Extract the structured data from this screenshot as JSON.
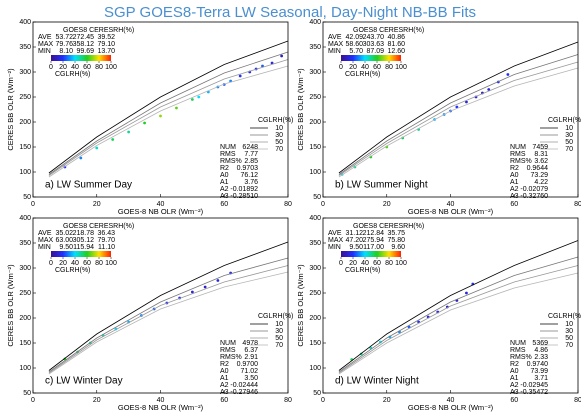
{
  "title": "SGP GOES8-Terra LW Seasonal, Day-Night NB-BB Fits",
  "chart_data": [
    {
      "type": "scatter",
      "label": "a) LW Summer Day",
      "xlabel": "GOES-8 NB OLR (Wm⁻²)",
      "ylabel": "CERES BB OLR (Wm⁻²)",
      "xlim": [
        0,
        80
      ],
      "ylim": [
        50,
        400
      ],
      "xticks": [
        0,
        20,
        40,
        60,
        80
      ],
      "yticks": [
        50,
        100,
        150,
        200,
        250,
        300,
        350,
        400
      ],
      "stats_table": {
        "header": "GOES8 CERESRH(%)",
        "rows": [
          {
            "name": "AVE",
            "values": [
              "53.72",
              "272.45",
              "39.52"
            ]
          },
          {
            "name": "MAX",
            "values": [
              "79.76",
              "358.12",
              "79.10"
            ]
          },
          {
            "name": "MIN",
            "values": [
              "8.10",
              "99.69",
              "13.70"
            ]
          }
        ]
      },
      "colorbar": {
        "label": "CGLRH(%)",
        "ticks": [
          0,
          20,
          40,
          60,
          80,
          100
        ]
      },
      "fits_title": "CGLRH(%)",
      "fits": [
        {
          "name": "10",
          "color": "#000000",
          "x": [
            5,
            20,
            40,
            60,
            80
          ],
          "values": [
            98,
            170,
            250,
            315,
            362
          ]
        },
        {
          "name": "30",
          "color": "#777777",
          "x": [
            5,
            20,
            40,
            60,
            80
          ],
          "values": [
            95,
            162,
            238,
            298,
            340
          ]
        },
        {
          "name": "50",
          "color": "#999999",
          "x": [
            5,
            20,
            40,
            60,
            80
          ],
          "values": [
            93,
            158,
            230,
            286,
            325
          ]
        },
        {
          "name": "70",
          "color": "#b5b5b5",
          "x": [
            5,
            20,
            40,
            60,
            80
          ],
          "values": [
            90,
            153,
            222,
            276,
            312
          ]
        }
      ],
      "fit_stats": {
        "names": [
          "NUM",
          "RMS",
          "RMS%",
          "R2",
          "A0",
          "A1",
          "A2",
          "A3"
        ],
        "values": [
          "6248",
          "7.77",
          "2.85",
          "0.9703",
          "76.12",
          "3.76",
          "-0.01892",
          "-0.28510"
        ]
      },
      "points": {
        "x": [
          10,
          15,
          20,
          25,
          30,
          35,
          40,
          45,
          50,
          52,
          55,
          58,
          60,
          62,
          65,
          68,
          70,
          72,
          75,
          78
        ],
        "y": [
          110,
          128,
          148,
          165,
          180,
          198,
          212,
          228,
          245,
          250,
          260,
          270,
          275,
          282,
          292,
          300,
          306,
          312,
          318,
          332
        ],
        "c": [
          20,
          30,
          45,
          55,
          50,
          60,
          70,
          65,
          55,
          40,
          35,
          30,
          25,
          30,
          20,
          15,
          20,
          25,
          15,
          10
        ]
      }
    },
    {
      "type": "scatter",
      "label": "b) LW Summer Night",
      "xlabel": "GOES-8 NB OLR (Wm⁻²)",
      "ylabel": "CERES BB OLR (Wm⁻²)",
      "xlim": [
        0,
        80
      ],
      "ylim": [
        50,
        400
      ],
      "xticks": [
        0,
        20,
        40,
        60,
        80
      ],
      "yticks": [
        50,
        100,
        150,
        200,
        250,
        300,
        350,
        400
      ],
      "stats_table": {
        "header": "GOES8 CERESRH(%)",
        "rows": [
          {
            "name": "AVE",
            "values": [
              "42.09",
              "243.70",
              "40.86"
            ]
          },
          {
            "name": "MAX",
            "values": [
              "58.60",
              "303.63",
              "81.60"
            ]
          },
          {
            "name": "MIN",
            "values": [
              "5.70",
              "87.09",
              "12.60"
            ]
          }
        ]
      },
      "colorbar": {
        "label": "CGLRH(%)",
        "ticks": [
          0,
          20,
          40,
          60,
          80,
          100
        ]
      },
      "fits_title": "CGLRH(%)",
      "fits": [
        {
          "name": "10",
          "color": "#000000",
          "x": [
            5,
            20,
            40,
            60,
            80
          ],
          "values": [
            98,
            170,
            250,
            312,
            360
          ]
        },
        {
          "name": "30",
          "color": "#777777",
          "x": [
            5,
            20,
            40,
            60,
            80
          ],
          "values": [
            95,
            162,
            238,
            295,
            335
          ]
        },
        {
          "name": "50",
          "color": "#999999",
          "x": [
            5,
            20,
            40,
            60,
            80
          ],
          "values": [
            93,
            157,
            230,
            283,
            320
          ]
        },
        {
          "name": "70",
          "color": "#b5b5b5",
          "x": [
            5,
            20,
            40,
            60,
            80
          ],
          "values": [
            90,
            152,
            222,
            272,
            308
          ]
        }
      ],
      "fit_stats": {
        "names": [
          "NUM",
          "RMS",
          "RMS%",
          "R2",
          "A0",
          "A1",
          "A2",
          "A3"
        ],
        "values": [
          "7459",
          "8.31",
          "3.62",
          "0.9644",
          "73.29",
          "4.22",
          "-0.02079",
          "-0.32760"
        ]
      },
      "points": {
        "x": [
          6,
          10,
          15,
          20,
          25,
          30,
          35,
          38,
          40,
          42,
          45,
          48,
          50,
          52,
          55,
          58
        ],
        "y": [
          95,
          110,
          130,
          150,
          168,
          185,
          205,
          215,
          222,
          230,
          240,
          250,
          258,
          265,
          280,
          295
        ],
        "c": [
          40,
          50,
          60,
          65,
          55,
          50,
          35,
          30,
          25,
          20,
          15,
          15,
          10,
          15,
          20,
          20
        ]
      }
    },
    {
      "type": "scatter",
      "label": "c) LW Winter Day",
      "xlabel": "GOES-8 NB OLR (Wm⁻²)",
      "ylabel": "CERES BB OLR (Wm⁻²)",
      "xlim": [
        0,
        80
      ],
      "ylim": [
        50,
        400
      ],
      "xticks": [
        0,
        20,
        40,
        60,
        80
      ],
      "yticks": [
        50,
        100,
        150,
        200,
        250,
        300,
        350,
        400
      ],
      "stats_table": {
        "header": "GOES8 CERESRH(%)",
        "rows": [
          {
            "name": "AVE",
            "values": [
              "35.02",
              "218.78",
              "36.43"
            ]
          },
          {
            "name": "MAX",
            "values": [
              "63.00",
              "305.12",
              "79.70"
            ]
          },
          {
            "name": "MIN",
            "values": [
              "9.50",
              "115.94",
              "11.10"
            ]
          }
        ]
      },
      "colorbar": {
        "label": "CGLRH(%)",
        "ticks": [
          0,
          20,
          40,
          60,
          80,
          100
        ]
      },
      "fits_title": "CGLRH(%)",
      "fits": [
        {
          "name": "10",
          "color": "#000000",
          "x": [
            5,
            20,
            40,
            60,
            80
          ],
          "values": [
            95,
            168,
            245,
            305,
            352
          ]
        },
        {
          "name": "30",
          "color": "#777777",
          "x": [
            5,
            20,
            40,
            60,
            80
          ],
          "values": [
            92,
            160,
            232,
            285,
            320
          ]
        },
        {
          "name": "50",
          "color": "#999999",
          "x": [
            5,
            20,
            40,
            60,
            80
          ],
          "values": [
            90,
            156,
            225,
            272,
            305
          ]
        },
        {
          "name": "70",
          "color": "#b5b5b5",
          "x": [
            5,
            20,
            40,
            60,
            80
          ],
          "values": [
            88,
            152,
            218,
            262,
            292
          ]
        }
      ],
      "fit_stats": {
        "names": [
          "NUM",
          "RMS",
          "RMS%",
          "R2",
          "A0",
          "A1",
          "A2",
          "A3"
        ],
        "values": [
          "4978",
          "6.37",
          "2.91",
          "0.9700",
          "71.02",
          "3.50",
          "-0.02444",
          "-0.27946"
        ]
      },
      "points": {
        "x": [
          10,
          14,
          18,
          22,
          26,
          30,
          34,
          38,
          42,
          46,
          50,
          54,
          58,
          62
        ],
        "y": [
          118,
          132,
          150,
          165,
          178,
          192,
          205,
          218,
          230,
          240,
          252,
          262,
          275,
          290
        ],
        "c": [
          60,
          55,
          50,
          45,
          40,
          35,
          30,
          25,
          20,
          20,
          15,
          10,
          15,
          20
        ]
      }
    },
    {
      "type": "scatter",
      "label": "d) LW Winter Night",
      "xlabel": "GOES-8 NB OLR (Wm⁻²)",
      "ylabel": "CERES BB OLR (Wm⁻²)",
      "xlim": [
        0,
        80
      ],
      "ylim": [
        50,
        400
      ],
      "xticks": [
        0,
        20,
        40,
        60,
        80
      ],
      "yticks": [
        50,
        100,
        150,
        200,
        250,
        300,
        350,
        400
      ],
      "stats_table": {
        "header": "GOES8 CERESRH(%)",
        "rows": [
          {
            "name": "AVE",
            "values": [
              "31.12",
              "212.84",
              "35.75"
            ]
          },
          {
            "name": "MAX",
            "values": [
              "47.20",
              "275.94",
              "75.80"
            ]
          },
          {
            "name": "MIN",
            "values": [
              "9.50",
              "117.00",
              "9.60"
            ]
          }
        ]
      },
      "colorbar": {
        "label": "CGLRH(%)",
        "ticks": [
          0,
          20,
          40,
          60,
          80,
          100
        ]
      },
      "fits_title": "CGLRH(%)",
      "fits": [
        {
          "name": "10",
          "color": "#000000",
          "x": [
            5,
            20,
            40,
            60,
            80
          ],
          "values": [
            95,
            168,
            245,
            305,
            355
          ]
        },
        {
          "name": "30",
          "color": "#777777",
          "x": [
            5,
            20,
            40,
            60,
            80
          ],
          "values": [
            92,
            160,
            232,
            285,
            322
          ]
        },
        {
          "name": "50",
          "color": "#999999",
          "x": [
            5,
            20,
            40,
            60,
            80
          ],
          "values": [
            90,
            155,
            224,
            272,
            305
          ]
        },
        {
          "name": "70",
          "color": "#b5b5b5",
          "x": [
            5,
            20,
            40,
            60,
            80
          ],
          "values": [
            88,
            150,
            216,
            260,
            290
          ]
        }
      ],
      "fit_stats": {
        "names": [
          "NUM",
          "RMS",
          "RMS%",
          "R2",
          "A0",
          "A1",
          "A2",
          "A3"
        ],
        "values": [
          "5369",
          "4.86",
          "2.33",
          "0.9740",
          "73.99",
          "3.71",
          "-0.02945",
          "-0.35472"
        ]
      },
      "points": {
        "x": [
          9,
          12,
          15,
          18,
          21,
          24,
          27,
          30,
          33,
          36,
          39,
          42,
          45,
          47
        ],
        "y": [
          117,
          128,
          140,
          152,
          162,
          172,
          182,
          192,
          202,
          212,
          222,
          235,
          250,
          268
        ],
        "c": [
          55,
          50,
          45,
          40,
          35,
          30,
          25,
          20,
          15,
          15,
          10,
          10,
          15,
          20
        ]
      }
    }
  ]
}
